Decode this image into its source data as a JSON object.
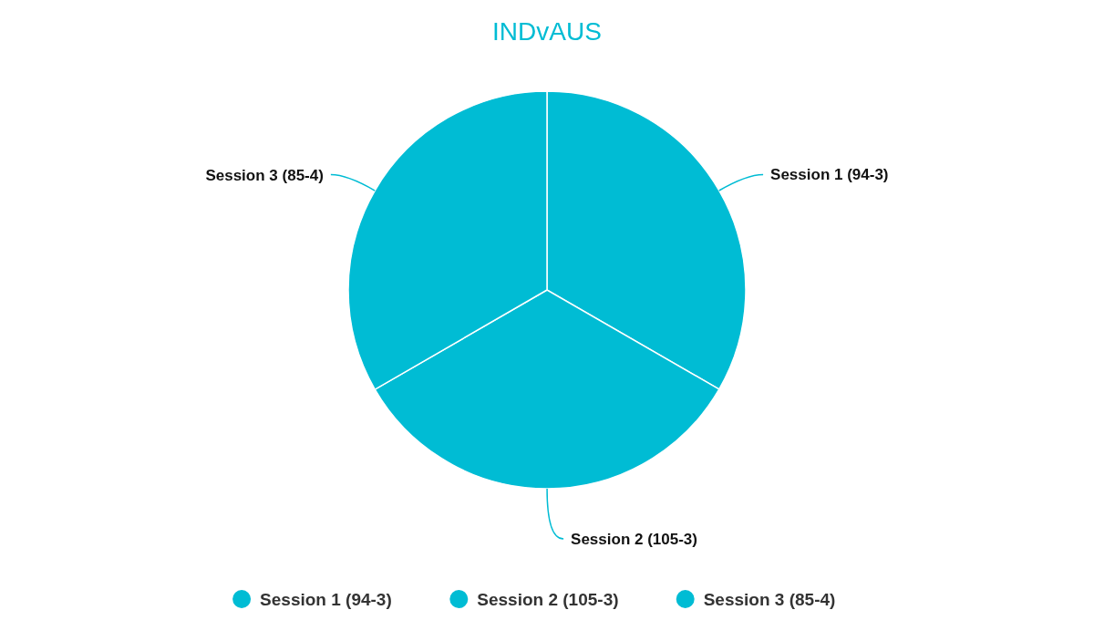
{
  "chart_data": {
    "type": "pie",
    "title": "INDvAUS",
    "categories": [
      "Session 1 (94-3)",
      "Session 2 (105-3)",
      "Session 3 (85-4)"
    ],
    "values": [
      33.33,
      33.33,
      33.34
    ],
    "colors": [
      "#00bcd4",
      "#00bcd4",
      "#00bcd4"
    ],
    "legend": "bottom"
  }
}
